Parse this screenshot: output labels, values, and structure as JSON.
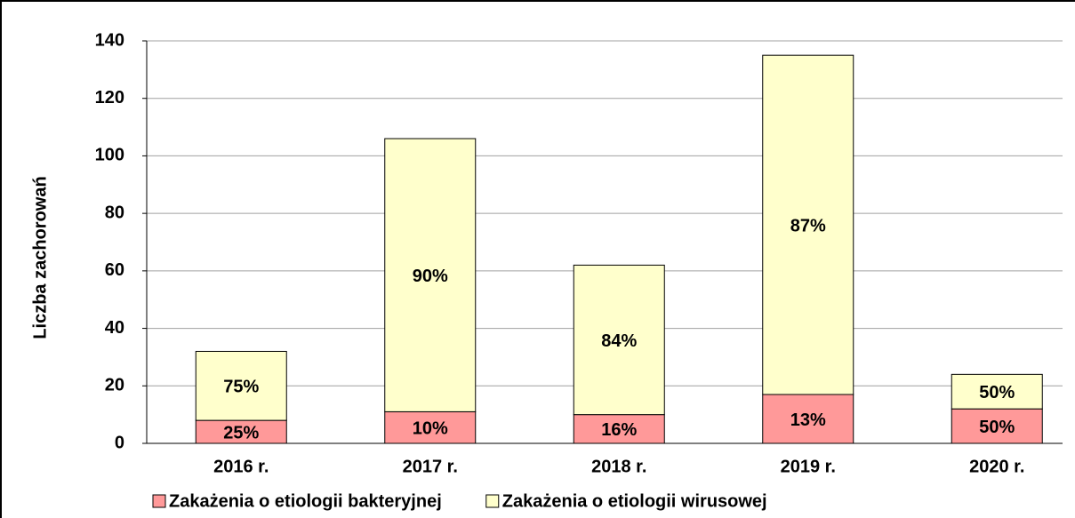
{
  "chart_data": {
    "type": "stacked_bar",
    "y_axis_label": "Liczba zachorowań",
    "categories": [
      "2016 r.",
      "2017 r.",
      "2018 r.",
      "2019 r.",
      "2020 r."
    ],
    "series": [
      {
        "name": "Zakażenia o etiologii bakteryjnej",
        "color": "#ff9999",
        "values": [
          8,
          11,
          10,
          17,
          12
        ],
        "share_labels": [
          "25%",
          "10%",
          "16%",
          "13%",
          "50%"
        ]
      },
      {
        "name": "Zakażenia o etiologii wirusowej",
        "color": "#ffffcc",
        "values": [
          24,
          95,
          52,
          118,
          12
        ],
        "share_labels": [
          "75%",
          "90%",
          "84%",
          "87%",
          "50%"
        ]
      }
    ],
    "ylim": [
      0,
      140
    ],
    "yticks": [
      0,
      20,
      40,
      60,
      80,
      100,
      120,
      140
    ],
    "grid": true,
    "legend": "bottom"
  }
}
